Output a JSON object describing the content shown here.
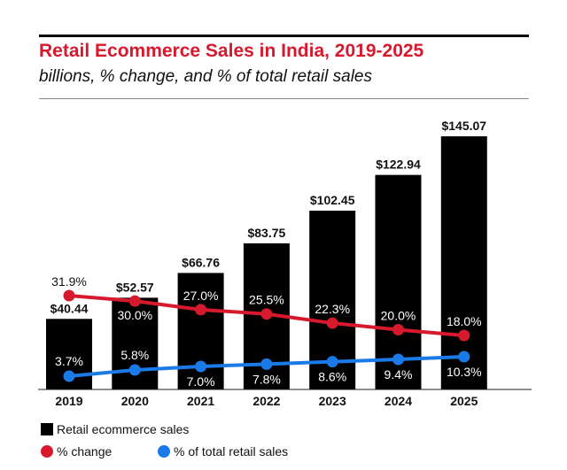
{
  "chart_data": {
    "type": "bar",
    "title": "Retail Ecommerce Sales in India, 2019-2025",
    "subtitle": "billions, % change, and % of total retail sales",
    "categories": [
      "2019",
      "2020",
      "2021",
      "2022",
      "2023",
      "2024",
      "2025"
    ],
    "series": [
      {
        "name": "Retail ecommerce sales",
        "type": "bar",
        "color": "#000000",
        "values": [
          40.44,
          52.57,
          66.76,
          83.75,
          102.45,
          122.94,
          145.07
        ],
        "labels": [
          "$40.44",
          "$52.57",
          "$66.76",
          "$83.75",
          "$102.45",
          "$122.94",
          "$145.07"
        ]
      },
      {
        "name": "% change",
        "type": "line",
        "color": "#d7192d",
        "values": [
          31.9,
          30.0,
          27.0,
          25.5,
          22.3,
          20.0,
          18.0
        ],
        "labels": [
          "31.9%",
          "30.0%",
          "27.0%",
          "25.5%",
          "22.3%",
          "20.0%",
          "18.0%"
        ]
      },
      {
        "name": "% of total retail sales",
        "type": "line",
        "color": "#1a7ae8",
        "values": [
          3.7,
          5.8,
          7.0,
          7.8,
          8.6,
          9.4,
          10.3
        ],
        "labels": [
          "3.7%",
          "5.8%",
          "7.0%",
          "7.8%",
          "8.6%",
          "9.4%",
          "10.3%"
        ]
      }
    ],
    "xlabel": "",
    "ylabel": "",
    "grid": false,
    "legend_position": "bottom-left"
  }
}
